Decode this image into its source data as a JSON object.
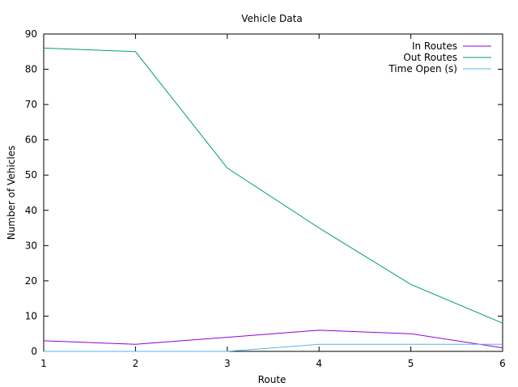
{
  "chart_data": {
    "type": "line",
    "title": "Vehicle Data",
    "xlabel": "Route",
    "ylabel": "Number of Vehicles",
    "x": [
      1,
      2,
      3,
      4,
      5,
      6
    ],
    "xlim": [
      1,
      6
    ],
    "ylim": [
      0,
      90
    ],
    "xticks": [
      1,
      2,
      3,
      4,
      5,
      6
    ],
    "yticks": [
      0,
      10,
      20,
      30,
      40,
      50,
      60,
      70,
      80,
      90
    ],
    "grid": false,
    "legend_position": "top-right",
    "series": [
      {
        "name": "In Routes",
        "color": "#9400d3",
        "values": [
          3,
          2,
          4,
          6,
          5,
          1
        ]
      },
      {
        "name": "Out Routes",
        "color": "#009e73",
        "values": [
          86,
          85,
          52,
          35,
          19,
          8
        ]
      },
      {
        "name": "Time Open (s)",
        "color": "#56b4e9",
        "values": [
          0,
          0,
          0,
          2,
          2,
          2
        ]
      }
    ]
  }
}
